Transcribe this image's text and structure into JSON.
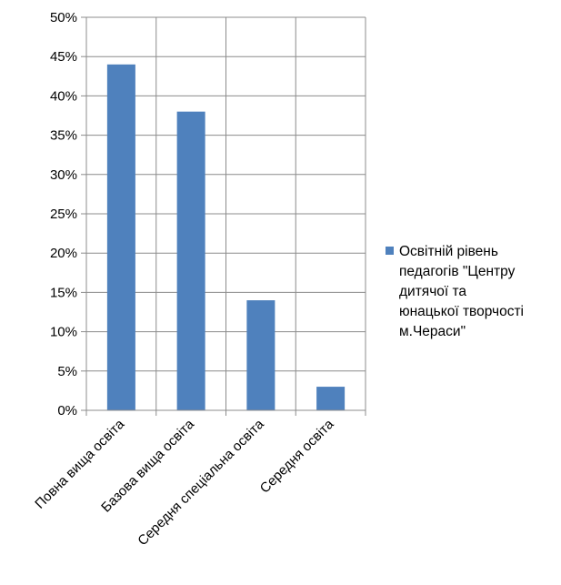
{
  "chart_data": {
    "type": "bar",
    "categories": [
      "Повна вища освіта",
      "Базова вища освіта",
      "Середня спеціальна освіта",
      "Середня освіта"
    ],
    "series": [
      {
        "name": "Освітній рівень педагогів \"Центру дитячої та юнацької творчості м.Чераси\"",
        "values": [
          44,
          38,
          14,
          3
        ]
      }
    ],
    "ylim": [
      0,
      50
    ],
    "ytick_step": 5,
    "ytick_labels": [
      "0%",
      "5%",
      "10%",
      "15%",
      "20%",
      "25%",
      "30%",
      "35%",
      "40%",
      "45%",
      "50%"
    ],
    "title": "",
    "xlabel": "",
    "ylabel": "",
    "grid": true,
    "legend_position": "right",
    "bar_color": "#4f81bd",
    "legend_lines": [
      "Освітній рівень",
      "педагогів \"Центру",
      "дитячої та",
      "юнацької творчості",
      "м.Чераси\""
    ]
  }
}
